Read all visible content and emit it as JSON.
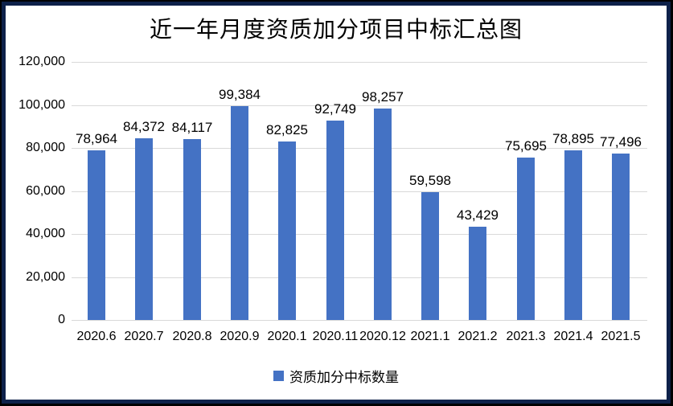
{
  "colors": {
    "bar": "#4472c4",
    "gridline": "#d9d9d9",
    "frame_border": "#0d214a",
    "outer_edge": "#000000",
    "text": "#000000"
  },
  "chart_data": {
    "type": "bar",
    "title": "近一年月度资质加分项目中标汇总图",
    "categories": [
      "2020.6",
      "2020.7",
      "2020.8",
      "2020.9",
      "2020.1",
      "2020.11",
      "2020.12",
      "2021.1",
      "2021.2",
      "2021.3",
      "2021.4",
      "2021.5"
    ],
    "values": [
      78964,
      84372,
      84117,
      99384,
      82825,
      92749,
      98257,
      59598,
      43429,
      75695,
      78895,
      77496
    ],
    "value_labels": [
      "78,964",
      "84,372",
      "84,117",
      "99,384",
      "82,825",
      "92,749",
      "98,257",
      "59,598",
      "43,429",
      "75,695",
      "78,895",
      "77,496"
    ],
    "series_name": "资质加分中标数量",
    "legend_entries": [
      "资质加分中标数量"
    ],
    "legend_position": "bottom",
    "xlabel": "",
    "ylabel": "",
    "ylim": [
      0,
      120000
    ],
    "y_tick_step": 20000,
    "y_tick_labels": [
      "120,000",
      "100,000",
      "80,000",
      "60,000",
      "40,000",
      "20,000",
      "0"
    ],
    "grid": true
  }
}
